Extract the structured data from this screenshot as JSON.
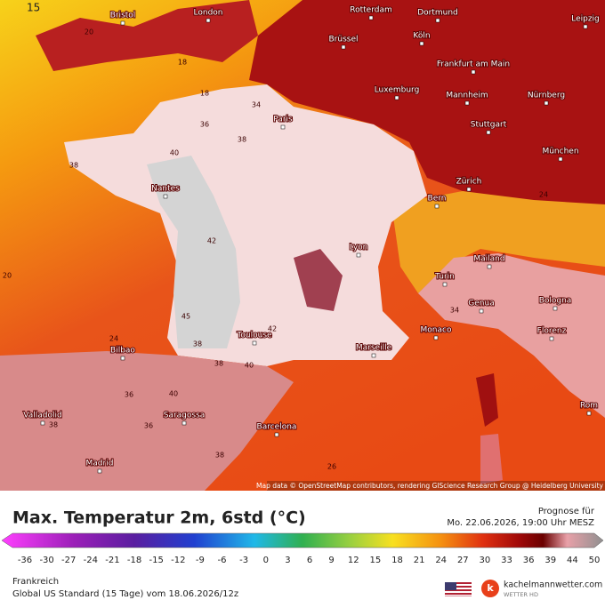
{
  "map": {
    "corner_label": "15",
    "cities": [
      "Bristol",
      "London",
      "Rotterdam",
      "Dortmund",
      "Leipzig",
      "Brüssel",
      "Köln",
      "Frankfurt am Main",
      "Luxemburg",
      "Mannheim",
      "Nürnberg",
      "Paris",
      "Stuttgart",
      "München",
      "Nantes",
      "Zürich",
      "Bern",
      "Lyon",
      "Mailand",
      "Turin",
      "Bologna",
      "Genua",
      "Toulouse",
      "Monaco",
      "Marseille",
      "Florenz",
      "Bilbao",
      "Rom",
      "Valladolid",
      "Saragossa",
      "Barcelona",
      "Madrid"
    ],
    "contour_labels": [
      20,
      18,
      18,
      34,
      36,
      38,
      38,
      40,
      42,
      45,
      42,
      40,
      24,
      38,
      36,
      40,
      36,
      38,
      38,
      26,
      34,
      24,
      20,
      38
    ],
    "attribution": "Map data © OpenStreetMap contributors, rendering GIScience Research Group @ Heidelberg University"
  },
  "footer": {
    "title": "Max. Temperatur 2m, 6std (°C)",
    "forecast_label": "Prognose für",
    "forecast_time": "Mo. 22.06.2026, 19:00 Uhr MESZ",
    "colorbar_ticks": [
      -36,
      -30,
      -27,
      -24,
      -21,
      -18,
      -15,
      -12,
      -9,
      -6,
      -3,
      0,
      3,
      6,
      9,
      12,
      15,
      18,
      21,
      24,
      27,
      30,
      33,
      36,
      39,
      44,
      50
    ],
    "region": "Frankreich",
    "model": "Global US Standard (15 Tage) vom  18.06.2026/12z",
    "brand": "kachelmannwetter.com",
    "brand_sub": "WETTER HD"
  }
}
